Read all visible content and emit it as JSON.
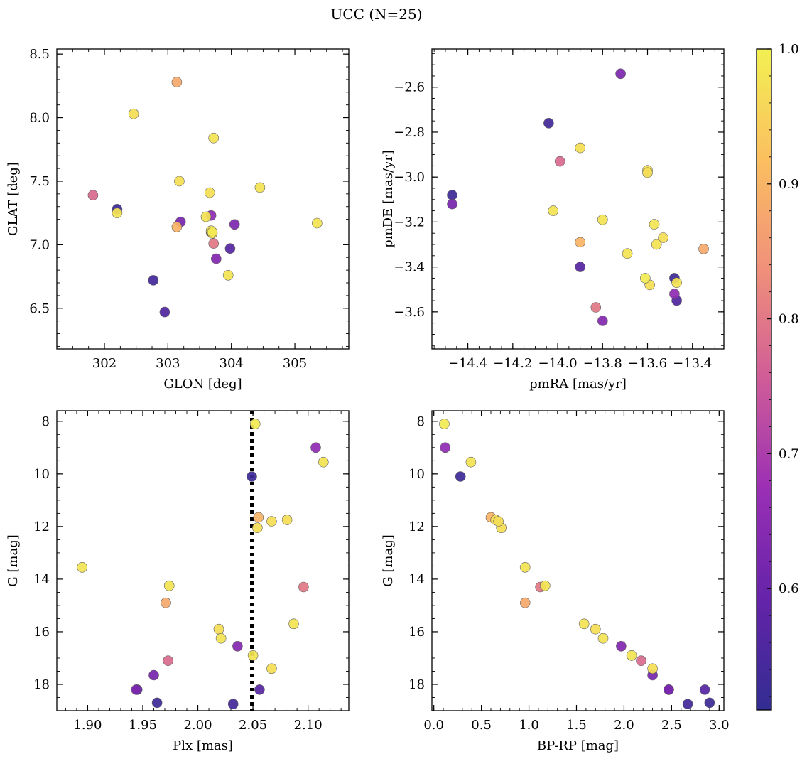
{
  "chart_data": {
    "title": "UCC (N=25)",
    "colorbar": {
      "colormap": "plasma-like",
      "range": [
        0.51,
        1.0
      ],
      "ticks": [
        0.6,
        0.7,
        0.8,
        0.9,
        1.0
      ],
      "tick_labels": [
        "0.6",
        "0.7",
        "0.8",
        "0.9",
        "1.0"
      ],
      "color_stops": [
        "#322d91",
        "#6423a9",
        "#9a2fb5",
        "#cf5c98",
        "#f0907a",
        "#fbbf60",
        "#f2f052"
      ]
    },
    "members": [
      {
        "glon": 301.82,
        "glat": 7.39,
        "pmra": -13.99,
        "pmde": -2.93,
        "plx": 1.973,
        "g": 17.1,
        "bprp": 2.18,
        "prob": 0.78
      },
      {
        "glon": 302.2,
        "glat": 7.28,
        "pmra": -14.47,
        "pmde": -3.08,
        "plx": 1.963,
        "g": 18.7,
        "bprp": 2.9,
        "prob": 0.53
      },
      {
        "glon": 302.2,
        "glat": 7.25,
        "pmra": -14.02,
        "pmde": -3.15,
        "plx": 2.021,
        "g": 16.25,
        "bprp": 1.78,
        "prob": 0.98
      },
      {
        "glon": 302.46,
        "glat": 8.03,
        "pmra": -13.9,
        "pmde": -2.87,
        "plx": 2.019,
        "g": 15.9,
        "bprp": 1.7,
        "prob": 0.97
      },
      {
        "glon": 303.14,
        "glat": 8.28,
        "pmra": -13.35,
        "pmde": -3.32,
        "plx": 1.971,
        "g": 14.9,
        "bprp": 0.96,
        "prob": 0.88
      },
      {
        "glon": 302.77,
        "glat": 6.72,
        "pmra": -14.04,
        "pmde": -2.76,
        "plx": 2.032,
        "g": 18.75,
        "bprp": 2.67,
        "prob": 0.54
      },
      {
        "glon": 302.95,
        "glat": 6.47,
        "pmra": -13.47,
        "pmde": -3.55,
        "plx": 1.945,
        "g": 18.2,
        "bprp": 2.47,
        "prob": 0.56
      },
      {
        "glon": 303.14,
        "glat": 7.14,
        "pmra": -13.9,
        "pmde": -3.29,
        "plx": 2.055,
        "g": 11.65,
        "bprp": 0.6,
        "prob": 0.9
      },
      {
        "glon": 303.18,
        "glat": 7.5,
        "pmra": -13.59,
        "pmde": -3.48,
        "plx": 2.081,
        "g": 11.75,
        "bprp": 0.65,
        "prob": 0.97
      },
      {
        "glon": 303.2,
        "glat": 7.18,
        "pmra": -14.47,
        "pmde": -3.12,
        "plx": 1.96,
        "g": 17.65,
        "bprp": 2.3,
        "prob": 0.62
      },
      {
        "glon": 303.6,
        "glat": 7.22,
        "pmra": -13.8,
        "pmde": -3.19,
        "plx": 1.895,
        "g": 13.55,
        "bprp": 0.96,
        "prob": 0.98
      },
      {
        "glon": 303.66,
        "glat": 7.41,
        "pmra": -13.6,
        "pmde": -2.97,
        "plx": 2.054,
        "g": 12.05,
        "bprp": 0.71,
        "prob": 0.97
      },
      {
        "glon": 303.68,
        "glat": 7.11,
        "pmra": -13.6,
        "pmde": -2.98,
        "plx": 2.067,
        "g": 11.8,
        "bprp": 0.68,
        "prob": 0.97
      },
      {
        "glon": 303.68,
        "glat": 7.23,
        "pmra": -13.48,
        "pmde": -3.52,
        "plx": 2.107,
        "g": 9.0,
        "bprp": 0.12,
        "prob": 0.66
      },
      {
        "glon": 303.7,
        "glat": 7.1,
        "pmra": -13.61,
        "pmde": -3.45,
        "plx": 2.052,
        "g": 8.1,
        "bprp": 0.11,
        "prob": 0.99
      },
      {
        "glon": 303.72,
        "glat": 7.84,
        "pmra": -13.47,
        "pmde": -3.47,
        "plx": 2.114,
        "g": 9.55,
        "bprp": 0.39,
        "prob": 0.98
      },
      {
        "glon": 303.68,
        "glat": 7.1,
        "pmra": -13.48,
        "pmde": -3.45,
        "plx": 2.049,
        "g": 10.1,
        "bprp": 0.28,
        "prob": 0.53
      },
      {
        "glon": 303.72,
        "glat": 7.01,
        "pmra": -13.83,
        "pmde": -3.58,
        "plx": 2.096,
        "g": 14.3,
        "bprp": 1.12,
        "prob": 0.8
      },
      {
        "glon": 303.76,
        "glat": 6.89,
        "pmra": -13.8,
        "pmde": -3.64,
        "plx": 2.036,
        "g": 16.55,
        "bprp": 1.97,
        "prob": 0.64
      },
      {
        "glon": 303.95,
        "glat": 6.76,
        "pmra": -13.57,
        "pmde": -3.21,
        "plx": 2.087,
        "g": 15.7,
        "bprp": 1.58,
        "prob": 0.98
      },
      {
        "glon": 303.98,
        "glat": 6.97,
        "pmra": -13.9,
        "pmde": -3.4,
        "plx": 2.056,
        "g": 18.2,
        "bprp": 2.85,
        "prob": 0.57
      },
      {
        "glon": 304.05,
        "glat": 7.16,
        "pmra": -13.72,
        "pmde": -2.54,
        "plx": 1.944,
        "g": 18.2,
        "bprp": 2.47,
        "prob": 0.63
      },
      {
        "glon": 304.45,
        "glat": 7.45,
        "pmra": -13.69,
        "pmde": -3.34,
        "plx": 1.974,
        "g": 14.25,
        "bprp": 1.17,
        "prob": 0.98
      },
      {
        "glon": 305.35,
        "glat": 7.17,
        "pmra": -13.56,
        "pmde": -3.3,
        "plx": 2.05,
        "g": 16.9,
        "bprp": 2.08,
        "prob": 0.98
      },
      {
        "glon": 303.7,
        "glat": 7.09,
        "pmra": -13.53,
        "pmde": -3.27,
        "plx": 2.067,
        "g": 17.4,
        "bprp": 2.3,
        "prob": 0.97
      }
    ],
    "panels": [
      {
        "id": "glon-glat",
        "type": "scatter",
        "x_key": "glon",
        "y_key": "glat",
        "xlabel": "GLON [deg]",
        "ylabel": "GLAT [deg]",
        "xlim": [
          301.25,
          305.85
        ],
        "ylim": [
          6.18,
          8.54
        ],
        "y_inverted": false,
        "xticks": [
          302,
          303,
          304,
          305
        ],
        "xtick_labels": [
          "302",
          "303",
          "304",
          "305"
        ],
        "yticks": [
          6.5,
          7.0,
          7.5,
          8.0,
          8.5
        ],
        "ytick_labels": [
          "6.5",
          "7.0",
          "7.5",
          "8.0",
          "8.5"
        ],
        "xminor": 0.25,
        "yminor": 0.1
      },
      {
        "id": "pmra-pmde",
        "type": "scatter",
        "x_key": "pmra",
        "y_key": "pmde",
        "xlabel": "pmRA [mas/yr]",
        "ylabel": "pmDE [mas/yr]",
        "xlim": [
          -14.56,
          -13.26
        ],
        "ylim": [
          -3.765,
          -2.43
        ],
        "y_inverted": false,
        "xticks": [
          -14.4,
          -14.2,
          -14.0,
          -13.8,
          -13.6,
          -13.4
        ],
        "xtick_labels": [
          "−14.4",
          "−14.2",
          "−14.0",
          "−13.8",
          "−13.6",
          "−13.4"
        ],
        "yticks": [
          -3.6,
          -3.4,
          -3.2,
          -3.0,
          -2.8,
          -2.6
        ],
        "ytick_labels": [
          "−3.6",
          "−3.4",
          "−3.2",
          "−3.0",
          "−2.8",
          "−2.6"
        ],
        "xminor": 0.05,
        "yminor": 0.05
      },
      {
        "id": "plx-g",
        "type": "scatter",
        "x_key": "plx",
        "y_key": "g",
        "xlabel": "Plx [mas]",
        "ylabel": "G [mag]",
        "xlim": [
          1.872,
          2.137
        ],
        "ylim": [
          7.6,
          19.0
        ],
        "y_inverted": true,
        "xticks": [
          1.9,
          1.95,
          2.0,
          2.05,
          2.1
        ],
        "xtick_labels": [
          "1.90",
          "1.95",
          "2.00",
          "2.05",
          "2.10"
        ],
        "yticks": [
          8,
          10,
          12,
          14,
          16,
          18
        ],
        "ytick_labels": [
          "8",
          "10",
          "12",
          "14",
          "16",
          "18"
        ],
        "xminor": 0.01,
        "yminor": 0.5,
        "vline": {
          "x": 2.049,
          "style": "dotted",
          "color": "#000000"
        }
      },
      {
        "id": "bprp-g",
        "type": "scatter",
        "x_key": "bprp",
        "y_key": "g",
        "xlabel": "BP-RP [mag]",
        "ylabel": "G [mag]",
        "xlim": [
          -0.02,
          3.05
        ],
        "ylim": [
          7.6,
          19.0
        ],
        "y_inverted": true,
        "xticks": [
          0.0,
          0.5,
          1.0,
          1.5,
          2.0,
          2.5,
          3.0
        ],
        "xtick_labels": [
          "0.0",
          "0.5",
          "1.0",
          "1.5",
          "2.0",
          "2.5",
          "3.0"
        ],
        "yticks": [
          8,
          10,
          12,
          14,
          16,
          18
        ],
        "ytick_labels": [
          "8",
          "10",
          "12",
          "14",
          "16",
          "18"
        ],
        "xminor": 0.1,
        "yminor": 0.5
      }
    ]
  }
}
